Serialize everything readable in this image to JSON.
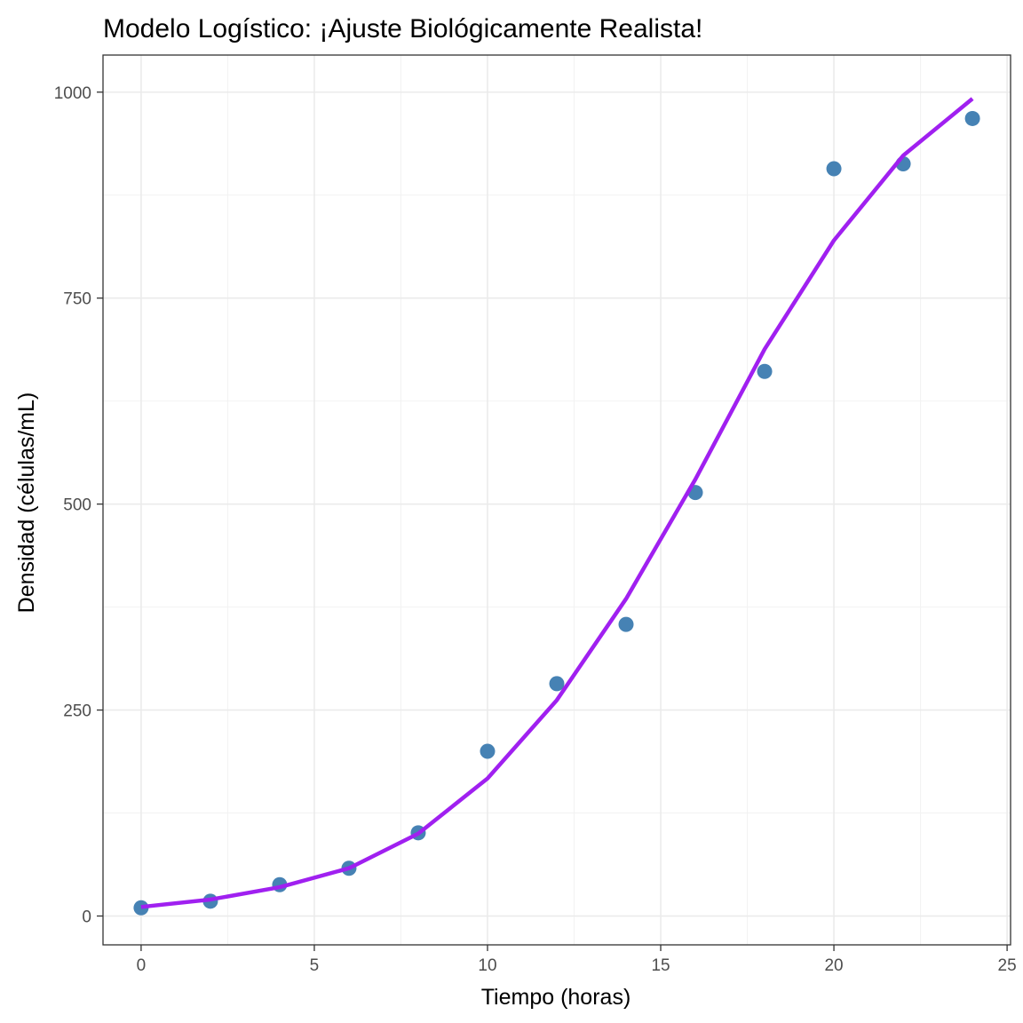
{
  "chart_data": {
    "type": "scatter",
    "title": "Modelo Logístico: ¡Ajuste Biológicamente Realista!",
    "xlabel": "Tiempo (horas)",
    "ylabel": "Densidad (células/mL)",
    "xlim": [
      -1.1,
      25.1
    ],
    "ylim": [
      -35,
      1045
    ],
    "x_ticks": [
      0,
      5,
      10,
      15,
      20,
      25
    ],
    "y_ticks": [
      0,
      250,
      500,
      750,
      1000
    ],
    "x_minor_ticks": [
      2.5,
      7.5,
      12.5,
      17.5,
      22.5
    ],
    "y_minor_ticks": [
      125,
      375,
      625,
      875
    ],
    "grid": true,
    "legend": "none",
    "series": [
      {
        "kind": "points",
        "color": "#4682B4",
        "x": [
          0,
          2,
          4,
          6,
          8,
          10,
          12,
          14,
          16,
          18,
          20,
          22,
          24
        ],
        "y": [
          10,
          18,
          38,
          58,
          101,
          200,
          282,
          354,
          514,
          661,
          907,
          913,
          968
        ]
      },
      {
        "kind": "line",
        "color": "#A020F0",
        "x": [
          0,
          2,
          4,
          6,
          8,
          10,
          12,
          14,
          16,
          18,
          20,
          22,
          24
        ],
        "y": [
          11,
          20,
          35,
          58,
          100,
          167,
          262,
          385,
          530,
          688,
          820,
          923,
          992
        ]
      }
    ]
  }
}
